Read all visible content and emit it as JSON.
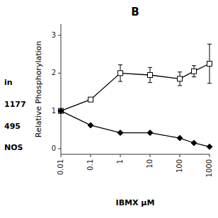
{
  "chart_data": {
    "type": "line",
    "title": "B",
    "x_label": "IBMX μM",
    "y_label": "Relative Phosphorylation",
    "annotations": [
      "in",
      "1177",
      "495",
      "NOS"
    ],
    "x": [
      0.01,
      0.1,
      1,
      10,
      100,
      300,
      1000
    ],
    "series": [
      {
        "color": "#000000",
        "marker": "open-square",
        "line_style": "solid",
        "values": [
          1.0,
          1.3,
          2.0,
          1.95,
          1.85,
          2.05,
          2.25
        ],
        "errors": [
          0.0,
          0.0,
          0.22,
          0.2,
          0.18,
          0.15,
          0.52
        ]
      },
      {
        "color": "#000000",
        "marker": "filled-diamond",
        "line_style": "solid",
        "values": [
          1.0,
          0.62,
          0.42,
          0.42,
          0.28,
          0.15,
          0.05
        ],
        "errors": [
          0.0,
          0.0,
          0.0,
          0.0,
          0.0,
          0.0,
          0.0
        ]
      }
    ],
    "log": "x",
    "xlim": [
      0.01,
      1000
    ],
    "xticks": [
      0.01,
      0.1,
      1,
      10,
      100,
      1000
    ],
    "ylim": [
      -0.15,
      3.3
    ],
    "yticks": [
      0,
      1,
      2,
      3
    ],
    "grid": false
  }
}
